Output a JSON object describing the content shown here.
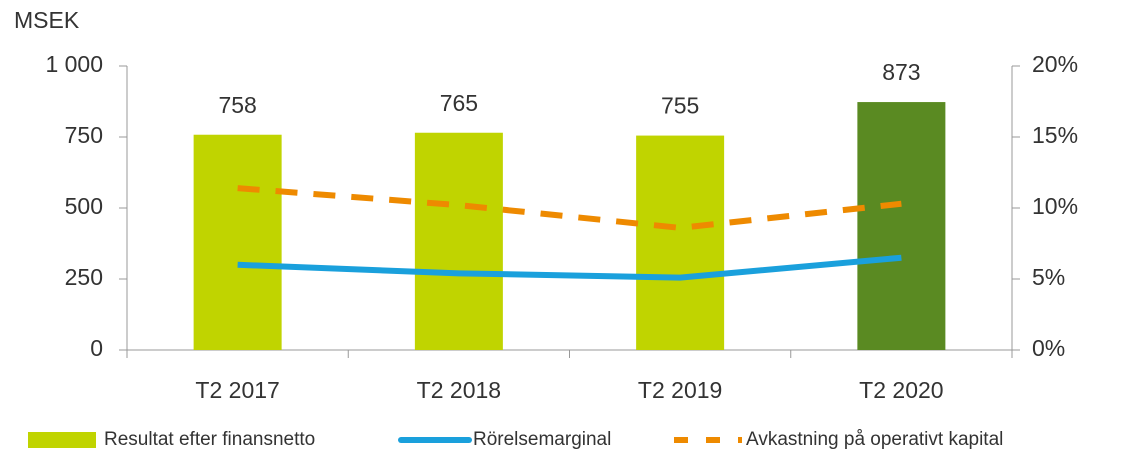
{
  "chart_data": {
    "type": "bar",
    "y_label": "MSEK",
    "categories": [
      "T2 2017",
      "T2 2018",
      "T2 2019",
      "T2 2020"
    ],
    "ylim": [
      0,
      1000
    ],
    "yticks": [
      0,
      250,
      500,
      750,
      {
        "value": 1000,
        "label": "1 000"
      }
    ],
    "y2lim": [
      0,
      20
    ],
    "y2ticks": [
      {
        "value": 0,
        "label": "0%"
      },
      {
        "value": 5,
        "label": "5%"
      },
      {
        "value": 10,
        "label": "10%"
      },
      {
        "value": 15,
        "label": "15%"
      },
      {
        "value": 20,
        "label": "20%"
      }
    ],
    "series": [
      {
        "name": "Resultat efter finansnetto",
        "type": "bar",
        "color": "#c0d400",
        "colors": [
          "#c0d400",
          "#c0d400",
          "#c0d400",
          "#5a8a22"
        ],
        "values": [
          758,
          765,
          755,
          873
        ]
      },
      {
        "name": "Rörelsemarginal",
        "type": "line",
        "axis": "y2",
        "color": "#1aa0dc",
        "dash": false,
        "values": [
          6.0,
          5.4,
          5.1,
          6.5
        ]
      },
      {
        "name": "Avkastning på operativt kapital",
        "type": "line",
        "axis": "y2",
        "color": "#ee8a00",
        "dash": true,
        "values": [
          11.4,
          10.2,
          8.6,
          10.3
        ]
      }
    ],
    "legend": "bottom"
  }
}
